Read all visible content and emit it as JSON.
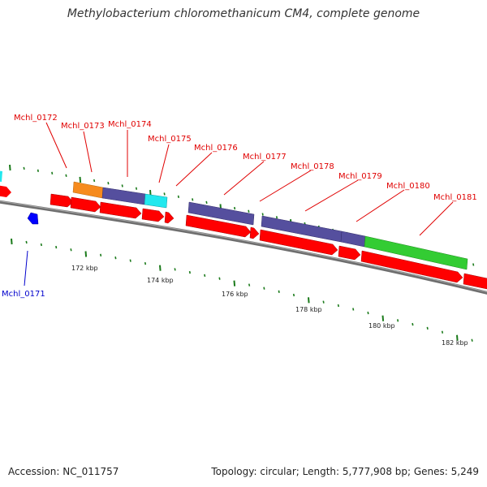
{
  "title": "Methylobacterium chloromethanicum CM4, complete genome",
  "footer": {
    "accession": "Accession: NC_011757",
    "stats": "Topology: circular; Length: 5,777,908 bp; Genes: 5,249"
  },
  "colors": {
    "forward_cds": "#ff0000",
    "reverse_cds": "#0000ff",
    "cog_purple": "#554f9e",
    "cog_cyan": "#22e8ee",
    "cog_orange": "#f68b1e",
    "cog_green": "#33cc33",
    "backbone": "#777777",
    "ticks": "#1a7a1a",
    "label_forward": "#e00000",
    "label_reverse": "#0000cc"
  },
  "scale_labels": [
    "172 kbp",
    "174 kbp",
    "176 kbp",
    "178 kbp",
    "180 kbp",
    "182 kbp"
  ],
  "gene_labels": {
    "forward": [
      "Mchl_0172",
      "Mchl_0173",
      "Mchl_0174",
      "Mchl_0175",
      "Mchl_0176",
      "Mchl_0177",
      "Mchl_0178",
      "Mchl_0179",
      "Mchl_0180",
      "Mchl_0181"
    ],
    "reverse": [
      "Mchl_0171"
    ]
  }
}
